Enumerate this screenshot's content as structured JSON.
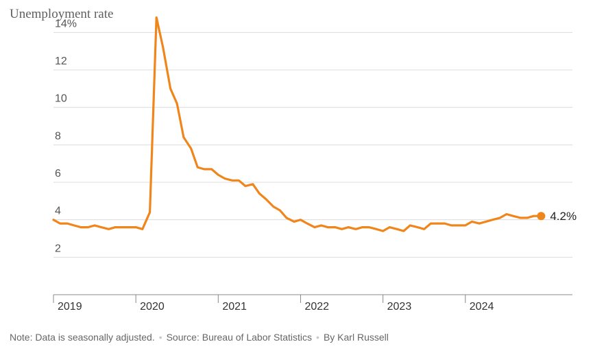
{
  "chart_data": {
    "type": "line",
    "title": "Unemployment rate",
    "ylim": [
      0,
      15
    ],
    "yticks": [
      2,
      4,
      6,
      8,
      10,
      12,
      14
    ],
    "ytick_labels": [
      "2",
      "4",
      "6",
      "8",
      "10",
      "12",
      "14%"
    ],
    "xlim": [
      2019.0,
      2025.3
    ],
    "xticks": [
      2019,
      2020,
      2021,
      2022,
      2023,
      2024
    ],
    "xtick_labels": [
      "2019",
      "2020",
      "2021",
      "2022",
      "2023",
      "2024"
    ],
    "grid": true,
    "series": [
      {
        "color": "#f0861b",
        "x": [
          2019.0,
          2019.08,
          2019.17,
          2019.25,
          2019.33,
          2019.42,
          2019.5,
          2019.58,
          2019.67,
          2019.75,
          2019.83,
          2019.92,
          2020.0,
          2020.08,
          2020.17,
          2020.25,
          2020.33,
          2020.42,
          2020.5,
          2020.58,
          2020.67,
          2020.75,
          2020.83,
          2020.92,
          2021.0,
          2021.08,
          2021.17,
          2021.25,
          2021.33,
          2021.42,
          2021.5,
          2021.58,
          2021.67,
          2021.75,
          2021.83,
          2021.92,
          2022.0,
          2022.08,
          2022.17,
          2022.25,
          2022.33,
          2022.42,
          2022.5,
          2022.58,
          2022.67,
          2022.75,
          2022.83,
          2022.92,
          2023.0,
          2023.08,
          2023.17,
          2023.25,
          2023.33,
          2023.42,
          2023.5,
          2023.58,
          2023.67,
          2023.75,
          2023.83,
          2023.92,
          2024.0,
          2024.08,
          2024.17,
          2024.25,
          2024.33,
          2024.42,
          2024.5,
          2024.58,
          2024.67,
          2024.75,
          2024.83,
          2024.92
        ],
        "y": [
          4.0,
          3.8,
          3.8,
          3.7,
          3.6,
          3.6,
          3.7,
          3.6,
          3.5,
          3.6,
          3.6,
          3.6,
          3.6,
          3.5,
          4.4,
          14.8,
          13.2,
          11.0,
          10.2,
          8.4,
          7.8,
          6.8,
          6.7,
          6.7,
          6.4,
          6.2,
          6.1,
          6.1,
          5.8,
          5.9,
          5.4,
          5.1,
          4.7,
          4.5,
          4.1,
          3.9,
          4.0,
          3.8,
          3.6,
          3.7,
          3.6,
          3.6,
          3.5,
          3.6,
          3.5,
          3.6,
          3.6,
          3.5,
          3.4,
          3.6,
          3.5,
          3.4,
          3.7,
          3.6,
          3.5,
          3.8,
          3.8,
          3.8,
          3.7,
          3.7,
          3.7,
          3.9,
          3.8,
          3.9,
          4.0,
          4.1,
          4.3,
          4.2,
          4.1,
          4.1,
          4.2,
          4.2
        ]
      }
    ],
    "end_label": "4.2%"
  },
  "footer": {
    "note": "Note: Data is seasonally adjusted.",
    "source": "Source: Bureau of Labor Statistics",
    "byline": "By Karl Russell",
    "separator": "•"
  }
}
